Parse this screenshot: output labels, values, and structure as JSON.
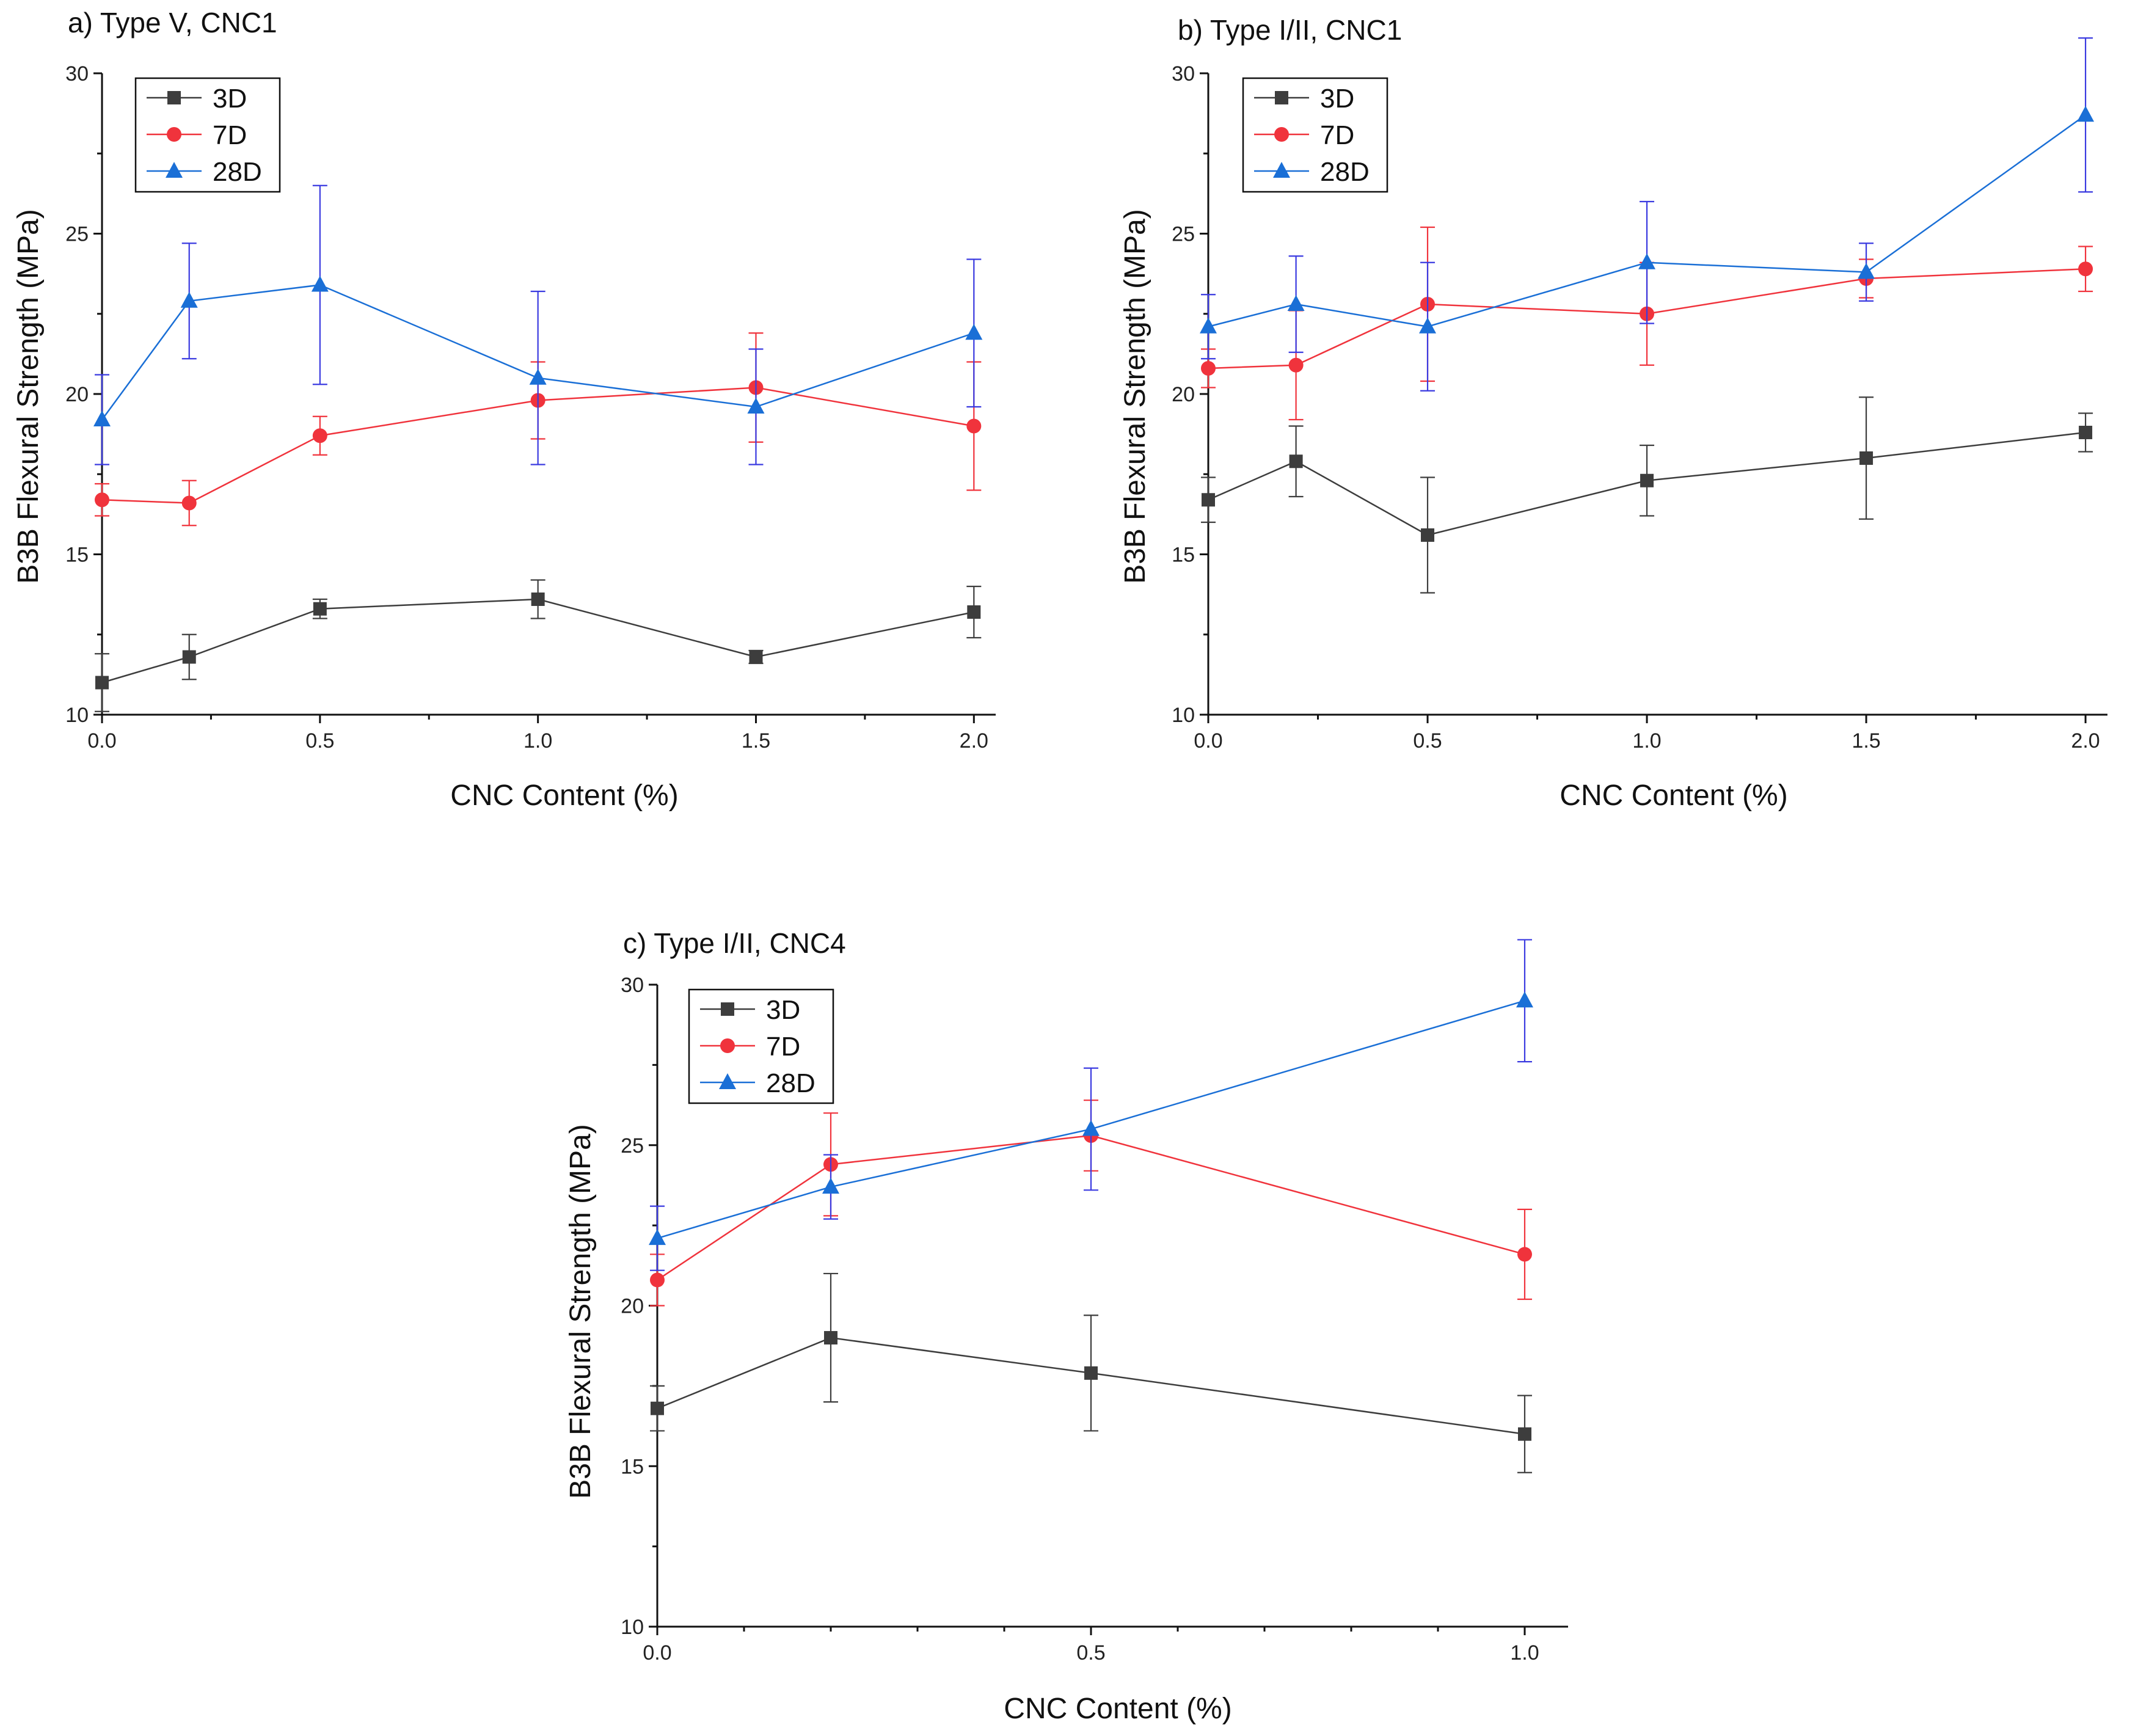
{
  "colors": {
    "3D": "#3d3d3d",
    "7D": "#f0333c",
    "28D": "#1a6fd6",
    "errorbar_28D": "#3a3ae0"
  },
  "chart_data": [
    {
      "id": "a",
      "type": "line",
      "title": "a) Type V, CNC1",
      "xlabel": "CNC Content (%)",
      "ylabel": "B3B Flexural Strength (MPa)",
      "xlim": [
        0,
        2.05
      ],
      "ylim": [
        10,
        30
      ],
      "xticks": [
        "0.0",
        "0.5",
        "1.0",
        "1.5",
        "2.0"
      ],
      "yticks": [
        "10",
        "15",
        "20",
        "25",
        "30"
      ],
      "legend_position": "top-left",
      "x": [
        0,
        0.2,
        0.5,
        1.0,
        1.5,
        2.0
      ],
      "series": [
        {
          "name": "3D",
          "marker": "square",
          "values": [
            11.0,
            11.8,
            13.3,
            13.6,
            11.8,
            13.2
          ],
          "err": [
            0.9,
            0.7,
            0.3,
            0.6,
            0.2,
            0.8
          ]
        },
        {
          "name": "7D",
          "marker": "circle",
          "values": [
            16.7,
            16.6,
            18.7,
            19.8,
            20.2,
            19.0
          ],
          "err": [
            0.5,
            0.7,
            0.6,
            1.2,
            1.7,
            2.0
          ]
        },
        {
          "name": "28D",
          "marker": "triangle",
          "values": [
            19.2,
            22.9,
            23.4,
            20.5,
            19.6,
            21.9
          ],
          "err": [
            1.4,
            1.8,
            3.1,
            2.7,
            1.8,
            2.3
          ]
        }
      ]
    },
    {
      "id": "b",
      "type": "line",
      "title": "b) Type I/II, CNC1",
      "xlabel": "CNC Content (%)",
      "ylabel": "B3B Flexural Strength (MPa)",
      "xlim": [
        0,
        2.05
      ],
      "ylim": [
        10,
        30
      ],
      "xticks": [
        "0.0",
        "0.5",
        "1.0",
        "1.5",
        "2.0"
      ],
      "yticks": [
        "10",
        "15",
        "20",
        "25",
        "30"
      ],
      "legend_position": "top-left",
      "x": [
        0,
        0.2,
        0.5,
        1.0,
        1.5,
        2.0
      ],
      "series": [
        {
          "name": "3D",
          "marker": "square",
          "values": [
            16.7,
            17.9,
            15.6,
            17.3,
            18.0,
            18.8
          ],
          "err": [
            0.7,
            1.1,
            1.8,
            1.1,
            1.9,
            0.6
          ]
        },
        {
          "name": "7D",
          "marker": "circle",
          "values": [
            20.8,
            20.9,
            22.8,
            22.5,
            23.6,
            23.9
          ],
          "err": [
            0.6,
            1.7,
            2.4,
            1.6,
            0.6,
            0.7
          ]
        },
        {
          "name": "28D",
          "marker": "triangle",
          "values": [
            22.1,
            22.8,
            22.1,
            24.1,
            23.8,
            28.7
          ],
          "err": [
            1.0,
            1.5,
            2.0,
            1.9,
            0.9,
            2.4
          ]
        }
      ]
    },
    {
      "id": "c",
      "type": "line",
      "title": "c) Type I/II, CNC4",
      "xlabel": "CNC Content (%)",
      "ylabel": "B3B Flexural Strength (MPa)",
      "xlim": [
        0,
        1.05
      ],
      "ylim": [
        10,
        30
      ],
      "xticks": [
        "0.0",
        "0.5",
        "1.0"
      ],
      "yticks": [
        "10",
        "15",
        "20",
        "25",
        "30"
      ],
      "legend_position": "top-left",
      "x": [
        0,
        0.2,
        0.5,
        1.0
      ],
      "series": [
        {
          "name": "3D",
          "marker": "square",
          "values": [
            16.8,
            19.0,
            17.9,
            16.0
          ],
          "err": [
            0.7,
            2.0,
            1.8,
            1.2
          ]
        },
        {
          "name": "7D",
          "marker": "circle",
          "values": [
            20.8,
            24.4,
            25.3,
            21.6
          ],
          "err": [
            0.8,
            1.6,
            1.1,
            1.4
          ]
        },
        {
          "name": "28D",
          "marker": "triangle",
          "values": [
            22.1,
            23.7,
            25.5,
            29.5
          ],
          "err": [
            1.0,
            1.0,
            1.9,
            1.9
          ]
        }
      ]
    }
  ]
}
